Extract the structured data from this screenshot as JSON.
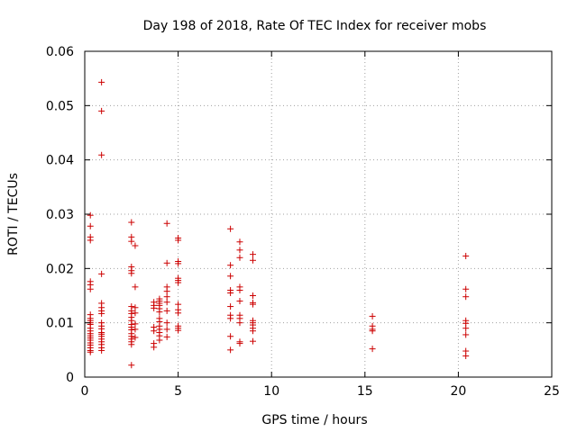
{
  "chart_data": {
    "type": "scatter",
    "title": "Day 198 of 2018, Rate Of TEC Index for receiver mobs",
    "xlabel": "GPS time / hours",
    "ylabel": "ROTI / TECUs",
    "xlim": [
      0,
      25
    ],
    "ylim": [
      0,
      0.06
    ],
    "x_ticks": [
      0,
      5,
      10,
      15,
      20,
      25
    ],
    "x_tick_labels": [
      "0",
      "5",
      "10",
      "15",
      "20",
      "25"
    ],
    "y_ticks": [
      0,
      0.01,
      0.02,
      0.03,
      0.04,
      0.05,
      0.06
    ],
    "y_tick_labels": [
      "0",
      "0.01",
      "0.02",
      "0.03",
      "0.04",
      "0.05",
      "0.06"
    ],
    "grid": true,
    "marker": "+",
    "color": "#cc0000",
    "series": [
      {
        "name": "ROTI",
        "points": [
          [
            0.3,
            0.0298
          ],
          [
            0.3,
            0.0278
          ],
          [
            0.3,
            0.0258
          ],
          [
            0.3,
            0.0252
          ],
          [
            0.3,
            0.0176
          ],
          [
            0.3,
            0.017
          ],
          [
            0.3,
            0.0162
          ],
          [
            0.3,
            0.0115
          ],
          [
            0.3,
            0.0108
          ],
          [
            0.3,
            0.0104
          ],
          [
            0.3,
            0.01
          ],
          [
            0.3,
            0.0097
          ],
          [
            0.3,
            0.009
          ],
          [
            0.3,
            0.0085
          ],
          [
            0.3,
            0.008
          ],
          [
            0.3,
            0.0076
          ],
          [
            0.3,
            0.0072
          ],
          [
            0.3,
            0.0068
          ],
          [
            0.3,
            0.0063
          ],
          [
            0.3,
            0.0059
          ],
          [
            0.3,
            0.0054
          ],
          [
            0.3,
            0.0049
          ],
          [
            0.3,
            0.0046
          ],
          [
            0.9,
            0.0543
          ],
          [
            0.9,
            0.049
          ],
          [
            0.9,
            0.0409
          ],
          [
            0.9,
            0.019
          ],
          [
            0.9,
            0.0136
          ],
          [
            0.9,
            0.0128
          ],
          [
            0.9,
            0.0122
          ],
          [
            0.9,
            0.0117
          ],
          [
            0.9,
            0.01
          ],
          [
            0.9,
            0.0094
          ],
          [
            0.9,
            0.0089
          ],
          [
            0.9,
            0.0082
          ],
          [
            0.9,
            0.0079
          ],
          [
            0.9,
            0.0075
          ],
          [
            0.9,
            0.007
          ],
          [
            0.9,
            0.0065
          ],
          [
            0.9,
            0.006
          ],
          [
            0.9,
            0.0054
          ],
          [
            0.9,
            0.0049
          ],
          [
            2.5,
            0.0285
          ],
          [
            2.5,
            0.0258
          ],
          [
            2.5,
            0.025
          ],
          [
            2.5,
            0.0203
          ],
          [
            2.5,
            0.0196
          ],
          [
            2.5,
            0.0191
          ],
          [
            2.5,
            0.013
          ],
          [
            2.5,
            0.0122
          ],
          [
            2.5,
            0.0117
          ],
          [
            2.5,
            0.011
          ],
          [
            2.5,
            0.0104
          ],
          [
            2.5,
            0.0097
          ],
          [
            2.5,
            0.0092
          ],
          [
            2.5,
            0.0087
          ],
          [
            2.5,
            0.008
          ],
          [
            2.5,
            0.0075
          ],
          [
            2.5,
            0.007
          ],
          [
            2.5,
            0.0065
          ],
          [
            2.5,
            0.006
          ],
          [
            2.5,
            0.0022
          ],
          [
            2.7,
            0.0242
          ],
          [
            2.7,
            0.0166
          ],
          [
            2.7,
            0.0128
          ],
          [
            2.7,
            0.0118
          ],
          [
            2.7,
            0.0098
          ],
          [
            2.7,
            0.0088
          ],
          [
            2.7,
            0.0073
          ],
          [
            3.7,
            0.0138
          ],
          [
            3.7,
            0.0132
          ],
          [
            3.7,
            0.0127
          ],
          [
            3.7,
            0.0092
          ],
          [
            3.7,
            0.0085
          ],
          [
            3.7,
            0.0062
          ],
          [
            3.7,
            0.0055
          ],
          [
            4.0,
            0.0144
          ],
          [
            4.0,
            0.014
          ],
          [
            4.0,
            0.0136
          ],
          [
            4.0,
            0.0132
          ],
          [
            4.0,
            0.0126
          ],
          [
            4.0,
            0.012
          ],
          [
            4.0,
            0.0108
          ],
          [
            4.0,
            0.0102
          ],
          [
            4.0,
            0.0094
          ],
          [
            4.0,
            0.0088
          ],
          [
            4.0,
            0.0082
          ],
          [
            4.0,
            0.0076
          ],
          [
            4.0,
            0.0068
          ],
          [
            4.4,
            0.0283
          ],
          [
            4.4,
            0.021
          ],
          [
            4.4,
            0.0166
          ],
          [
            4.4,
            0.0158
          ],
          [
            4.4,
            0.0148
          ],
          [
            4.4,
            0.0138
          ],
          [
            4.4,
            0.0122
          ],
          [
            4.4,
            0.01
          ],
          [
            4.4,
            0.0088
          ],
          [
            4.4,
            0.0074
          ],
          [
            5.0,
            0.0256
          ],
          [
            5.0,
            0.0252
          ],
          [
            5.0,
            0.0213
          ],
          [
            5.0,
            0.0209
          ],
          [
            5.0,
            0.0182
          ],
          [
            5.0,
            0.0178
          ],
          [
            5.0,
            0.0174
          ],
          [
            5.0,
            0.0134
          ],
          [
            5.0,
            0.0124
          ],
          [
            5.0,
            0.0118
          ],
          [
            5.0,
            0.0094
          ],
          [
            5.0,
            0.009
          ],
          [
            5.0,
            0.0086
          ],
          [
            7.8,
            0.0273
          ],
          [
            7.8,
            0.0206
          ],
          [
            7.8,
            0.0186
          ],
          [
            7.8,
            0.016
          ],
          [
            7.8,
            0.0155
          ],
          [
            7.8,
            0.013
          ],
          [
            7.8,
            0.0114
          ],
          [
            7.8,
            0.0108
          ],
          [
            7.8,
            0.0075
          ],
          [
            7.8,
            0.005
          ],
          [
            8.3,
            0.0249
          ],
          [
            8.3,
            0.0234
          ],
          [
            8.3,
            0.022
          ],
          [
            8.3,
            0.0166
          ],
          [
            8.3,
            0.016
          ],
          [
            8.3,
            0.014
          ],
          [
            8.3,
            0.0114
          ],
          [
            8.3,
            0.0108
          ],
          [
            8.3,
            0.01
          ],
          [
            8.3,
            0.0065
          ],
          [
            8.3,
            0.0062
          ],
          [
            9.0,
            0.0226
          ],
          [
            9.0,
            0.0215
          ],
          [
            9.0,
            0.015
          ],
          [
            9.0,
            0.0137
          ],
          [
            9.0,
            0.0134
          ],
          [
            9.0,
            0.0104
          ],
          [
            9.0,
            0.01
          ],
          [
            9.0,
            0.0096
          ],
          [
            9.0,
            0.009
          ],
          [
            9.0,
            0.0085
          ],
          [
            9.0,
            0.0066
          ],
          [
            15.4,
            0.0112
          ],
          [
            15.4,
            0.0094
          ],
          [
            15.4,
            0.0088
          ],
          [
            15.4,
            0.0085
          ],
          [
            15.4,
            0.0052
          ],
          [
            20.4,
            0.0223
          ],
          [
            20.4,
            0.0162
          ],
          [
            20.4,
            0.0148
          ],
          [
            20.4,
            0.0104
          ],
          [
            20.4,
            0.0099
          ],
          [
            20.4,
            0.009
          ],
          [
            20.4,
            0.0078
          ],
          [
            20.4,
            0.0048
          ],
          [
            20.4,
            0.0039
          ]
        ]
      }
    ]
  }
}
